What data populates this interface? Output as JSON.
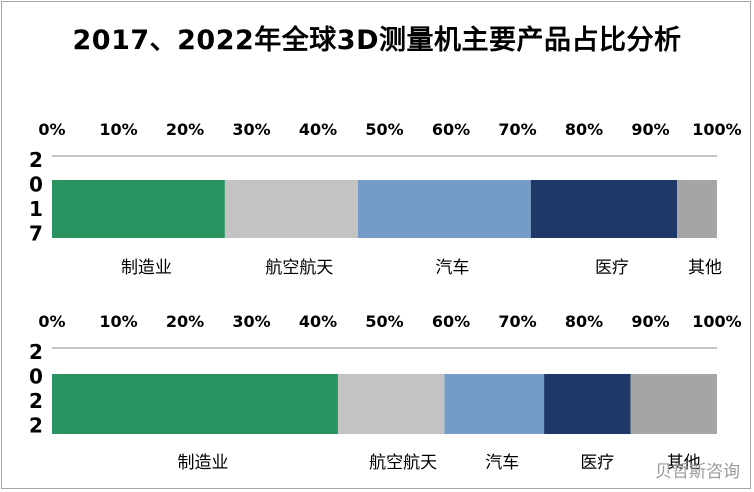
{
  "title": "2017、2022年全球3D测量机主要产品占比分析",
  "watermark": "贝哲斯咨询",
  "chart_data": [
    {
      "type": "bar",
      "orientation": "horizontal-stacked-100",
      "category_label": "2017",
      "xlim": [
        0,
        100
      ],
      "ticks": [
        "0%",
        "10%",
        "20%",
        "30%",
        "40%",
        "50%",
        "60%",
        "70%",
        "80%",
        "90%",
        "100%"
      ],
      "tick_values": [
        0,
        10,
        20,
        30,
        40,
        50,
        60,
        70,
        80,
        90,
        100
      ],
      "series": [
        {
          "name": "制造业",
          "value": 26,
          "color": "#2A9461"
        },
        {
          "name": "航空航天",
          "value": 20,
          "color": "#C3C3C3"
        },
        {
          "name": "汽车",
          "value": 26,
          "color": "#759CC7"
        },
        {
          "name": "医疗",
          "value": 22,
          "color": "#1E3867"
        },
        {
          "name": "其他",
          "value": 6,
          "color": "#A5A5A5"
        }
      ]
    },
    {
      "type": "bar",
      "orientation": "horizontal-stacked-100",
      "category_label": "2022",
      "xlim": [
        0,
        100
      ],
      "ticks": [
        "0%",
        "10%",
        "20%",
        "30%",
        "40%",
        "50%",
        "60%",
        "70%",
        "80%",
        "90%",
        "100%"
      ],
      "tick_values": [
        0,
        10,
        20,
        30,
        40,
        50,
        60,
        70,
        80,
        90,
        100
      ],
      "series": [
        {
          "name": "制造业",
          "value": 43,
          "color": "#2A9461"
        },
        {
          "name": "航空航天",
          "value": 16,
          "color": "#C3C3C3"
        },
        {
          "name": "汽车",
          "value": 15,
          "color": "#759CC7"
        },
        {
          "name": "医疗",
          "value": 13,
          "color": "#1E3867"
        },
        {
          "name": "其他",
          "value": 13,
          "color": "#A5A5A5"
        }
      ]
    }
  ]
}
